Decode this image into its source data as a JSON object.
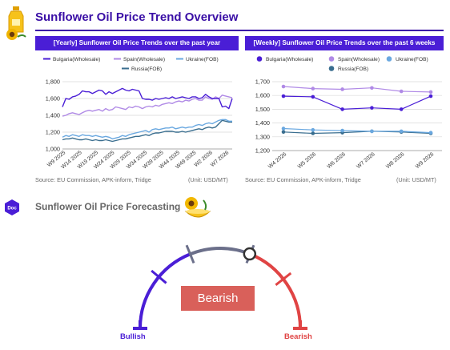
{
  "page": {
    "title": "Sunflower Oil Price Trend Overview",
    "forecast_title": "Sunflower Oil Price Forecasting",
    "doc_badge": "Doc",
    "icons": [
      "sunflower-oil-bottle-icon",
      "sunflower-oil-bowl-icon",
      "doc-badge-icon"
    ]
  },
  "yearly": {
    "header": "[Yearly] Sunflower Oil Price Trends over the past year",
    "source": "Source: EU Commission, APK-inform, Tridge",
    "unit": "(Unit: USD/MT)"
  },
  "weekly": {
    "header": "[Weekly] Sunflower Oil Price Trends over the past 6 weeks",
    "source": "Source: EU Commission, APK-inform, Tridge",
    "unit": "(Unit: USD/MT)"
  },
  "forecast": {
    "status": "Bearish",
    "left_label": "Bullish",
    "right_label": "Bearish",
    "needle_fraction": 0.62,
    "colors": {
      "bullish": "#4a1ed6",
      "neutral": "#6b6f8a",
      "bearish": "#e04444",
      "status_box": "#d9605a"
    }
  },
  "chart_data": [
    {
      "type": "line",
      "grid": true,
      "legend": "top",
      "ylim": [
        1000,
        1800
      ],
      "yticks": [
        "1,000",
        "1,200",
        "1,400",
        "1,600",
        "1,800"
      ],
      "xticks": [
        "W9 2025",
        "W14 2025",
        "W19 2025",
        "W24 2025",
        "W29 2025",
        "W34 2025",
        "W39 2025",
        "W44 2025",
        "W49 2025",
        "W2 2026",
        "W7 2026"
      ],
      "series": [
        {
          "name": "Bulgaria(Wholesale)",
          "color": "#4a1ed6",
          "style": "line",
          "values": [
            1500,
            1600,
            1590,
            1620,
            1630,
            1650,
            1690,
            1680,
            1680,
            1660,
            1680,
            1700,
            1690,
            1650,
            1680,
            1660,
            1680,
            1700,
            1720,
            1700,
            1690,
            1710,
            1700,
            1690,
            1600,
            1590,
            1590,
            1580,
            1600,
            1590,
            1600,
            1610,
            1600,
            1620,
            1600,
            1610,
            1620,
            1610,
            1600,
            1620,
            1620,
            1600,
            1610,
            1650,
            1620,
            1600,
            1600,
            1600,
            1500,
            1510,
            1480,
            1600
          ]
        },
        {
          "name": "Spain(Wholesale)",
          "color": "#b08ae6",
          "style": "line",
          "values": [
            1390,
            1400,
            1420,
            1430,
            1420,
            1410,
            1430,
            1450,
            1460,
            1450,
            1460,
            1470,
            1450,
            1480,
            1460,
            1470,
            1500,
            1490,
            1480,
            1470,
            1500,
            1490,
            1510,
            1500,
            1480,
            1500,
            1510,
            1500,
            1520,
            1510,
            1530,
            1540,
            1550,
            1540,
            1560,
            1570,
            1560,
            1580,
            1570,
            1590,
            1600,
            1580,
            1580,
            1620,
            1600,
            1590,
            1620,
            1600,
            1640,
            1630,
            1620,
            1610
          ]
        },
        {
          "name": "Ukraine(FOB)",
          "color": "#6aa8e0",
          "style": "line",
          "values": [
            1140,
            1160,
            1150,
            1170,
            1160,
            1150,
            1170,
            1160,
            1160,
            1150,
            1160,
            1150,
            1140,
            1150,
            1140,
            1120,
            1130,
            1140,
            1160,
            1150,
            1170,
            1180,
            1190,
            1200,
            1210,
            1220,
            1200,
            1230,
            1240,
            1230,
            1240,
            1250,
            1250,
            1260,
            1240,
            1250,
            1260,
            1250,
            1260,
            1260,
            1280,
            1290,
            1280,
            1300,
            1310,
            1300,
            1320,
            1340,
            1350,
            1350,
            1330,
            1330
          ]
        },
        {
          "name": "Russia(FOB)",
          "color": "#3a6e8f",
          "style": "line",
          "values": [
            1110,
            1120,
            1120,
            1130,
            1120,
            1110,
            1110,
            1120,
            1110,
            1100,
            1110,
            1100,
            1100,
            1110,
            1100,
            1090,
            1100,
            1110,
            1120,
            1120,
            1130,
            1140,
            1150,
            1150,
            1160,
            1170,
            1160,
            1180,
            1190,
            1190,
            1200,
            1210,
            1210,
            1210,
            1200,
            1200,
            1210,
            1200,
            1210,
            1220,
            1230,
            1240,
            1230,
            1250,
            1260,
            1250,
            1260,
            1300,
            1340,
            1330,
            1320,
            1320
          ]
        }
      ]
    },
    {
      "type": "line",
      "grid": true,
      "legend": "top",
      "ylim": [
        1200,
        1700
      ],
      "yticks": [
        "1,200",
        "1,300",
        "1,400",
        "1,500",
        "1,600",
        "1,700"
      ],
      "categories": [
        "W4 2026",
        "W5 2026",
        "W6 2026",
        "W7 2026",
        "W8 2026",
        "W9 2026"
      ],
      "series": [
        {
          "name": "Bulgaria(Wholesale)",
          "color": "#4a1ed6",
          "style": "line-marker",
          "values": [
            1595,
            1590,
            1500,
            1510,
            1500,
            1595
          ]
        },
        {
          "name": "Spain(Wholesale)",
          "color": "#b08ae6",
          "style": "line-marker",
          "values": [
            1665,
            1650,
            1645,
            1655,
            1630,
            1625
          ]
        },
        {
          "name": "Ukraine(FOB)",
          "color": "#6aa8e0",
          "style": "line-marker",
          "values": [
            1360,
            1350,
            1345,
            1340,
            1340,
            1330
          ]
        },
        {
          "name": "Russia(FOB)",
          "color": "#3a6e8f",
          "style": "line-marker",
          "values": [
            1335,
            1325,
            1330,
            1340,
            1335,
            1325
          ]
        }
      ]
    }
  ]
}
